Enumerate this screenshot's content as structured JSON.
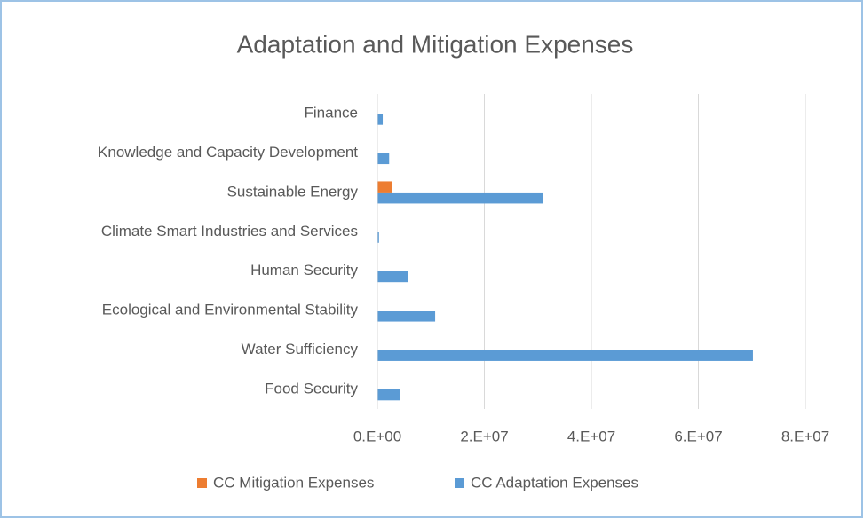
{
  "chart_data": {
    "type": "hbar",
    "title": "Adaptation and Mitigation Expenses",
    "categories": [
      "Food Security",
      "Water Sufficiency",
      "Ecological and Environmental Stability",
      "Human Security",
      "Climate Smart Industries and Services",
      "Sustainable Energy",
      "Knowledge and Capacity Development",
      "Finance"
    ],
    "series": [
      {
        "name": "CC Mitigation Expenses",
        "color": "#ed7d31",
        "values": [
          0,
          0,
          0,
          0,
          0,
          2800000,
          0,
          0
        ]
      },
      {
        "name": "CC Adaptation Expenses",
        "color": "#5b9bd5",
        "values": [
          4300000,
          70200000,
          10800000,
          5800000,
          300000,
          30900000,
          2200000,
          1000000
        ]
      }
    ],
    "xlim": [
      0,
      80000000
    ],
    "xticks": [
      {
        "value": 0,
        "label": "0.E+00"
      },
      {
        "value": 20000000,
        "label": "2.E+07"
      },
      {
        "value": 40000000,
        "label": "4.E+07"
      },
      {
        "value": 60000000,
        "label": "6.E+07"
      },
      {
        "value": 80000000,
        "label": "8.E+07"
      }
    ],
    "grid": true,
    "legend": "bottom"
  }
}
